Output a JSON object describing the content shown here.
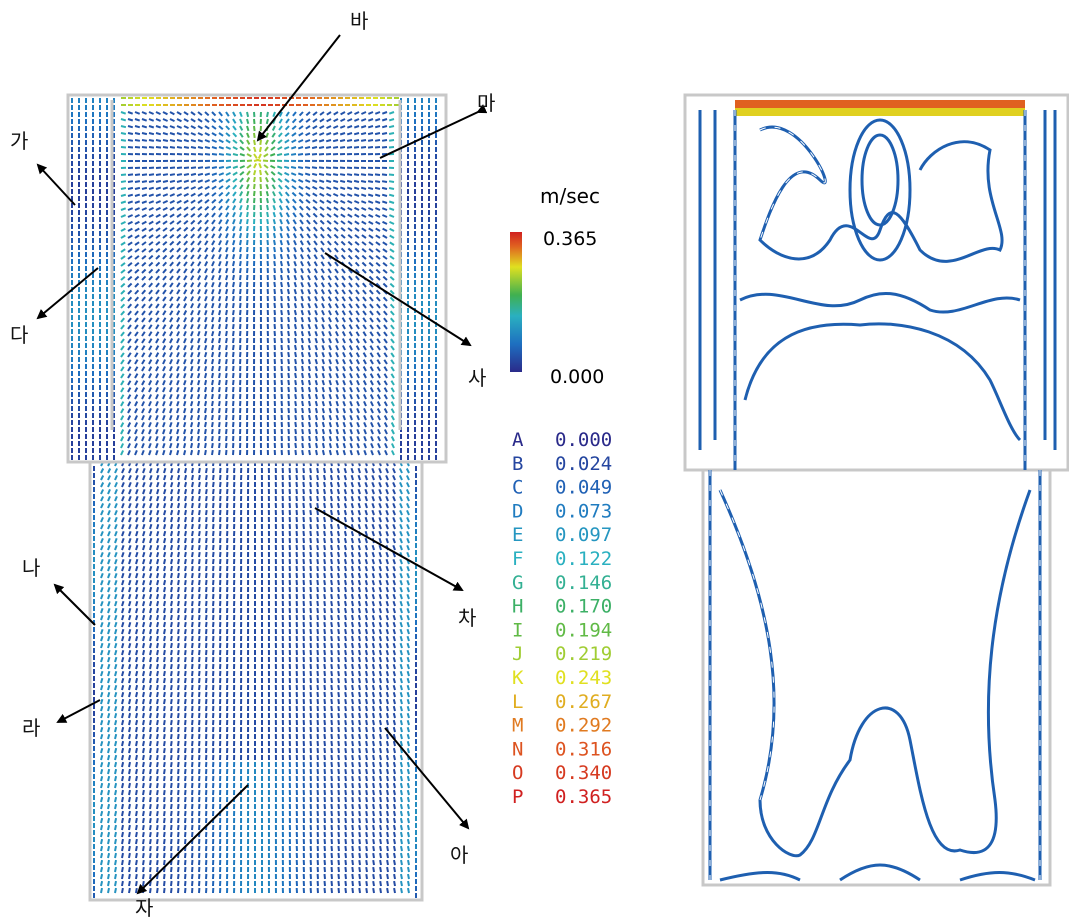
{
  "annotations": [
    "바",
    "마",
    "가",
    "다",
    "사",
    "나",
    "차",
    "라",
    "아",
    "자"
  ],
  "colorbar": {
    "unit": "m/sec",
    "max": "0.365",
    "min": "0.000"
  },
  "legend": {
    "letters": [
      "A",
      "B",
      "C",
      "D",
      "E",
      "F",
      "G",
      "H",
      "I",
      "J",
      "K",
      "L",
      "M",
      "N",
      "O",
      "P"
    ],
    "values": [
      "0.000",
      "0.024",
      "0.049",
      "0.073",
      "0.097",
      "0.122",
      "0.146",
      "0.170",
      "0.194",
      "0.219",
      "0.243",
      "0.267",
      "0.292",
      "0.316",
      "0.340",
      "0.365"
    ]
  }
}
